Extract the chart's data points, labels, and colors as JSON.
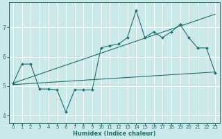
{
  "xlabel": "Humidex (Indice chaleur)",
  "bg_color": "#cce9e9",
  "grid_color": "#ffffff",
  "line_color": "#1e6e6e",
  "xlim": [
    -0.5,
    23.5
  ],
  "ylim": [
    3.75,
    7.85
  ],
  "yticks": [
    4,
    5,
    6,
    7
  ],
  "xticks": [
    0,
    1,
    2,
    3,
    4,
    5,
    6,
    7,
    8,
    9,
    10,
    11,
    12,
    13,
    14,
    15,
    16,
    17,
    18,
    19,
    20,
    21,
    22,
    23
  ],
  "trend1_x": [
    0,
    23
  ],
  "trend1_y": [
    5.1,
    7.45
  ],
  "trend2_x": [
    0,
    23
  ],
  "trend2_y": [
    5.05,
    5.48
  ],
  "main_x": [
    0,
    1,
    2,
    3,
    4,
    5,
    6,
    7,
    8,
    9,
    10,
    11,
    12,
    13,
    14,
    15,
    16,
    17,
    18,
    19,
    20,
    21,
    22,
    23
  ],
  "main_y": [
    5.1,
    5.75,
    5.75,
    4.9,
    4.9,
    4.87,
    4.12,
    4.87,
    4.87,
    4.87,
    6.3,
    6.38,
    6.43,
    6.65,
    7.58,
    6.65,
    6.85,
    6.65,
    6.85,
    7.1,
    6.65,
    6.3,
    6.3,
    5.45
  ]
}
